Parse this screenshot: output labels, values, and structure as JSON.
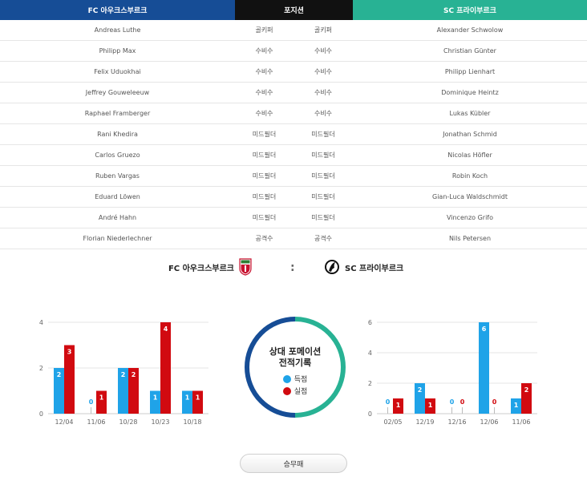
{
  "header": {
    "home_team": "FC 아우크스부르크",
    "position": "포지션",
    "away_team": "SC 프라이부르크"
  },
  "lineup": [
    {
      "home": "Andreas Luthe",
      "pos_home": "골키퍼",
      "pos_away": "골키퍼",
      "away": "Alexander Schwolow"
    },
    {
      "home": "Philipp Max",
      "pos_home": "수비수",
      "pos_away": "수비수",
      "away": "Christian Günter"
    },
    {
      "home": "Felix Uduokhai",
      "pos_home": "수비수",
      "pos_away": "수비수",
      "away": "Philipp Lienhart"
    },
    {
      "home": "Jeffrey Gouweleeuw",
      "pos_home": "수비수",
      "pos_away": "수비수",
      "away": "Dominique Heintz"
    },
    {
      "home": "Raphael Framberger",
      "pos_home": "수비수",
      "pos_away": "수비수",
      "away": "Lukas Kübler"
    },
    {
      "home": "Rani Khedira",
      "pos_home": "미드필더",
      "pos_away": "미드필더",
      "away": "Jonathan Schmid"
    },
    {
      "home": "Carlos Gruezo",
      "pos_home": "미드필더",
      "pos_away": "미드필더",
      "away": "Nicolas Höfler"
    },
    {
      "home": "Ruben Vargas",
      "pos_home": "미드필더",
      "pos_away": "미드필더",
      "away": "Robin Koch"
    },
    {
      "home": "Eduard Löwen",
      "pos_home": "미드필더",
      "pos_away": "미드필더",
      "away": "Gian-Luca Waldschmidt"
    },
    {
      "home": "André Hahn",
      "pos_home": "미드필더",
      "pos_away": "미드필더",
      "away": "Vincenzo Grifo"
    },
    {
      "home": "Florian Niederlechner",
      "pos_home": "공격수",
      "pos_away": "공격수",
      "away": "Nils Petersen"
    }
  ],
  "teams": {
    "home": "FC 아우크스부르크",
    "separator": ":",
    "away": "SC 프라이부르크"
  },
  "center": {
    "title_line1": "상대 포메이션",
    "title_line2": "전적기록",
    "legend_scored": "득점",
    "legend_conceded": "실점"
  },
  "colors": {
    "home_blue": "#164d96",
    "away_green": "#28b294",
    "scored": "#1fa3e8",
    "conceded": "#d10a10"
  },
  "result_button": "승무패",
  "chart_data": [
    {
      "type": "bar",
      "categories": [
        "12/04",
        "11/06",
        "10/28",
        "10/23",
        "10/18"
      ],
      "series": [
        {
          "name": "득점",
          "values": [
            2,
            0,
            2,
            1,
            1
          ]
        },
        {
          "name": "실점",
          "values": [
            3,
            1,
            2,
            4,
            1
          ]
        }
      ],
      "yticks": [
        0,
        2,
        4
      ],
      "ylim": [
        0,
        4
      ]
    },
    {
      "type": "bar",
      "categories": [
        "02/05",
        "12/19",
        "12/16",
        "12/06",
        "11/06"
      ],
      "series": [
        {
          "name": "득점",
          "values": [
            0,
            2,
            0,
            6,
            1
          ]
        },
        {
          "name": "실점",
          "values": [
            1,
            1,
            0,
            0,
            2
          ]
        }
      ],
      "yticks": [
        0,
        2,
        4,
        6
      ],
      "ylim": [
        0,
        6
      ]
    }
  ]
}
